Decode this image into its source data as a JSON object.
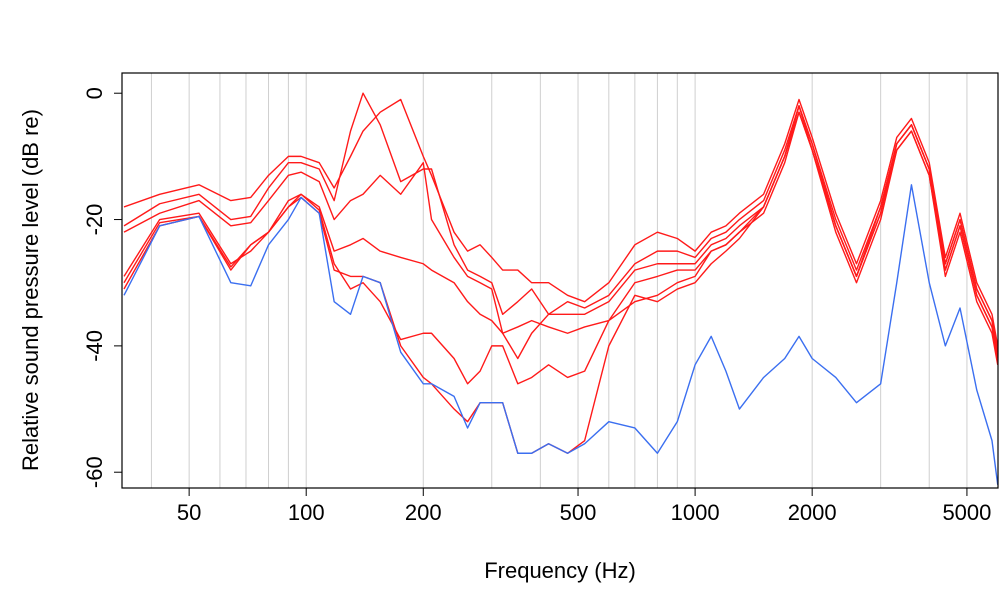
{
  "chart_data": {
    "type": "line",
    "xlabel": "Frequency (Hz)",
    "ylabel": "Relative sound pressure level (dB re)",
    "xscale": "log",
    "xlim": [
      33.6,
      6010
    ],
    "ylim": [
      -62.5,
      3.2
    ],
    "xticks": [
      50,
      100,
      200,
      500,
      1000,
      2000,
      5000
    ],
    "yticks": [
      0,
      -20,
      -40,
      -60
    ],
    "xgrid": [
      40,
      50,
      60,
      70,
      80,
      90,
      100,
      200,
      300,
      400,
      500,
      600,
      700,
      800,
      900,
      1000,
      2000,
      3000,
      4000,
      5000
    ],
    "x": [
      34,
      42,
      53,
      64,
      72,
      80,
      90,
      97,
      108,
      118,
      130,
      140,
      155,
      175,
      200,
      210,
      240,
      260,
      280,
      300,
      320,
      350,
      380,
      420,
      470,
      520,
      600,
      700,
      800,
      900,
      1000,
      1100,
      1200,
      1300,
      1500,
      1700,
      1850,
      2000,
      2300,
      2600,
      3000,
      3300,
      3600,
      4000,
      4400,
      4800,
      5300,
      5800,
      6000
    ],
    "series": [
      {
        "color": "#ff1a1a",
        "values": [
          -18,
          -16,
          -14.5,
          -17,
          -16.5,
          -13,
          -10,
          -10,
          -11,
          -15,
          -10,
          -6,
          -3,
          -1,
          -10,
          -13,
          -22,
          -25,
          -24,
          -26,
          -28,
          -28,
          -30,
          -30,
          -32,
          -33,
          -30,
          -24,
          -22,
          -23,
          -25,
          -22,
          -21,
          -19,
          -16,
          -8,
          -1,
          -7,
          -19,
          -27,
          -17,
          -7,
          -4,
          -11,
          -26,
          -19,
          -30,
          -35,
          -40
        ]
      },
      {
        "color": "#ff1a1a",
        "values": [
          -21,
          -17.5,
          -16,
          -20,
          -19.5,
          -15,
          -11,
          -11,
          -12,
          -17,
          -6,
          0,
          -5,
          -14,
          -12,
          -12,
          -24,
          -28,
          -29,
          -30,
          -35,
          -33,
          -31,
          -35,
          -33,
          -34,
          -32,
          -27,
          -25,
          -25,
          -26,
          -23,
          -22,
          -20,
          -17,
          -9,
          -2,
          -8,
          -20,
          -28,
          -18,
          -8,
          -5,
          -12,
          -27,
          -20,
          -31,
          -36,
          -41
        ]
      },
      {
        "color": "#ff1a1a",
        "values": [
          -22,
          -19,
          -17,
          -21,
          -20.5,
          -17,
          -13,
          -12.5,
          -14,
          -20,
          -17,
          -16,
          -13,
          -16,
          -11,
          -20,
          -26,
          -29,
          -30,
          -31,
          -38,
          -42,
          -38,
          -35,
          -35,
          -35,
          -33,
          -28,
          -27,
          -27,
          -27,
          -24,
          -23,
          -21,
          -18,
          -10,
          -3,
          -9,
          -21,
          -29,
          -19,
          -9,
          -6,
          -13,
          -28,
          -21,
          -32,
          -37,
          -42
        ]
      },
      {
        "color": "#ff1a1a",
        "values": [
          -29,
          -20,
          -19,
          -27,
          -25,
          -22,
          -17,
          -16,
          -18,
          -25,
          -24,
          -23,
          -25,
          -26,
          -27,
          -28,
          -30,
          -33,
          -35,
          -36,
          -38,
          -37,
          -36,
          -37,
          -38,
          -37,
          -36,
          -30,
          -29,
          -28,
          -28,
          -25,
          -24,
          -22,
          -18,
          -10,
          -2,
          -8,
          -21,
          -29,
          -19,
          -8,
          -5,
          -12,
          -28,
          -21,
          -32,
          -37,
          -42
        ]
      },
      {
        "color": "#ff1a1a",
        "values": [
          -30,
          -20.5,
          -19.5,
          -27.5,
          -24,
          -22,
          -18,
          -16,
          -18.5,
          -27,
          -31,
          -30,
          -33,
          -39,
          -38,
          -38,
          -42,
          -46,
          -44,
          -40,
          -40,
          -46,
          -45,
          -43,
          -45,
          -44,
          -36,
          -33,
          -32,
          -30,
          -29,
          -25,
          -24,
          -22,
          -19,
          -11,
          -3,
          -9,
          -22,
          -30,
          -20,
          -9,
          -6,
          -13,
          -29,
          -22,
          -33,
          -38,
          -43
        ]
      },
      {
        "color": "#ff1a1a",
        "values": [
          -31,
          -21,
          -19.5,
          -28,
          -24,
          -22,
          -18,
          -16.5,
          -19,
          -28,
          -29,
          -29,
          -30,
          -40,
          -45,
          -46,
          -50,
          -52,
          -49,
          -49,
          -49,
          -57,
          -57,
          -55.5,
          -57,
          -55,
          -40,
          -32,
          -33,
          -31,
          -30,
          -27,
          -25,
          -23,
          -18,
          -10,
          -2,
          -9,
          -21,
          -29,
          -18,
          -8,
          -5,
          -12,
          -27,
          -20,
          -31,
          -36,
          -41
        ]
      },
      {
        "color": "#3b6ff0",
        "values": [
          -32,
          -21,
          -19.5,
          -30,
          -30.5,
          -24,
          -20,
          -16.5,
          -19,
          -33,
          -35,
          -29,
          -30,
          -41,
          -46,
          -46,
          -48,
          -53,
          -49,
          -49,
          -49,
          -57,
          -57,
          -55.5,
          -57,
          -55.5,
          -52,
          -53,
          -57,
          -52,
          -43,
          -38.5,
          -44,
          -50,
          -45,
          -42,
          -38.5,
          -42,
          -45,
          -49,
          -46,
          -30,
          -14.5,
          -30,
          -40,
          -34,
          -47,
          -55,
          -62
        ]
      }
    ]
  }
}
